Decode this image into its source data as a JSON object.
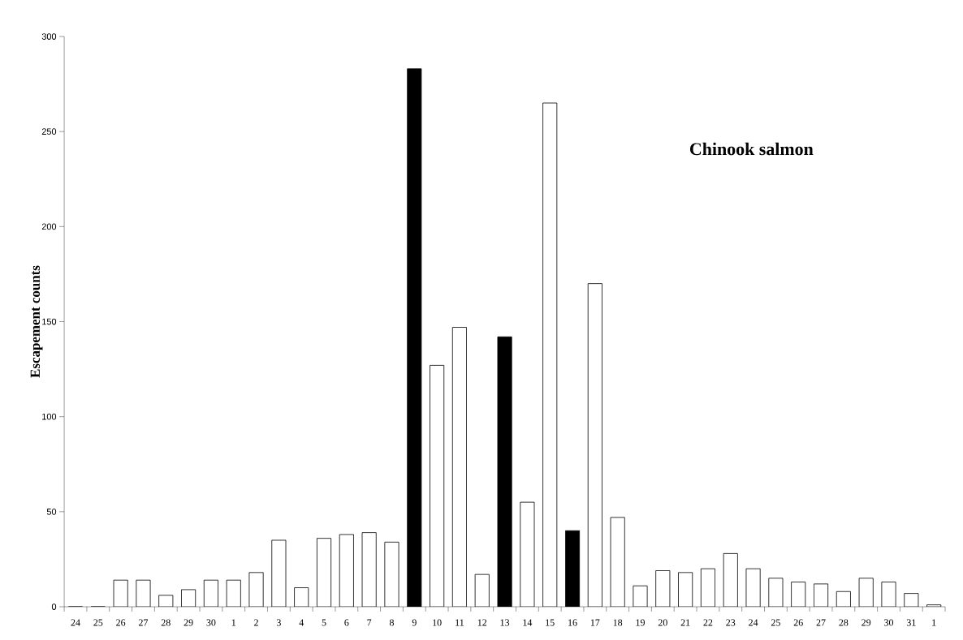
{
  "chart_data": {
    "type": "bar",
    "title": "Chinook salmon",
    "ylabel": "Escapement counts",
    "categories": [
      "24",
      "25",
      "26",
      "27",
      "28",
      "29",
      "30",
      "1",
      "2",
      "3",
      "4",
      "5",
      "6",
      "7",
      "8",
      "9",
      "10",
      "11",
      "12",
      "13",
      "14",
      "15",
      "16",
      "17",
      "18",
      "19",
      "20",
      "21",
      "22",
      "23",
      "24",
      "25",
      "26",
      "27",
      "28",
      "29",
      "30",
      "31",
      "1"
    ],
    "values": [
      0,
      0,
      14,
      14,
      6,
      9,
      14,
      14,
      18,
      35,
      10,
      36,
      38,
      39,
      34,
      283,
      127,
      147,
      17,
      142,
      55,
      265,
      40,
      170,
      47,
      11,
      19,
      18,
      20,
      28,
      20,
      15,
      13,
      12,
      8,
      15,
      13,
      7,
      1
    ],
    "colors": [
      "#ffffff",
      "#ffffff",
      "#ffffff",
      "#ffffff",
      "#ffffff",
      "#ffffff",
      "#ffffff",
      "#ffffff",
      "#ffffff",
      "#ffffff",
      "#ffffff",
      "#ffffff",
      "#ffffff",
      "#ffffff",
      "#ffffff",
      "#000000",
      "#ffffff",
      "#ffffff",
      "#ffffff",
      "#000000",
      "#ffffff",
      "#ffffff",
      "#000000",
      "#ffffff",
      "#ffffff",
      "#ffffff",
      "#ffffff",
      "#ffffff",
      "#ffffff",
      "#ffffff",
      "#ffffff",
      "#ffffff",
      "#ffffff",
      "#ffffff",
      "#ffffff",
      "#ffffff",
      "#ffffff",
      "#ffffff",
      "#ffffff"
    ],
    "ylim": [
      0,
      300
    ],
    "yticks": [
      0,
      50,
      100,
      150,
      200,
      250,
      300
    ]
  }
}
